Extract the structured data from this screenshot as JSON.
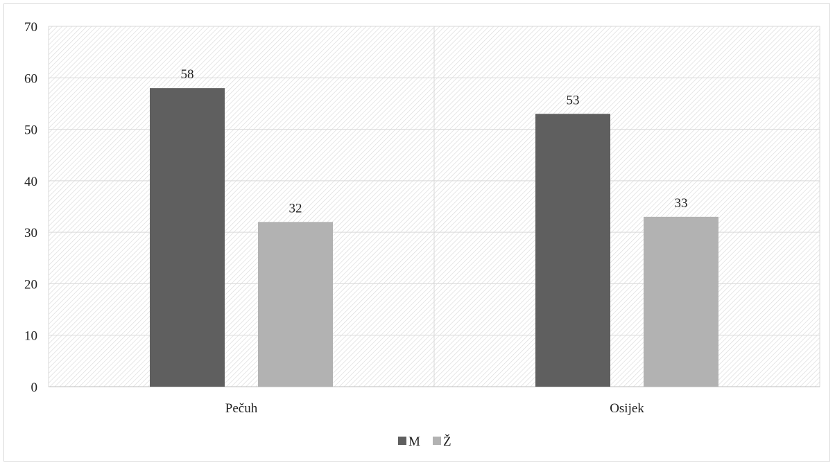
{
  "chart_data": {
    "type": "bar",
    "categories": [
      "Pečuh",
      "Osijek"
    ],
    "series": [
      {
        "name": "M",
        "values": [
          58,
          53
        ],
        "color": "#5f5f5f"
      },
      {
        "name": "Ž",
        "values": [
          32,
          33
        ],
        "color": "#b2b2b2"
      }
    ],
    "ylim": [
      0,
      70
    ],
    "yticks": [
      0,
      10,
      20,
      30,
      40,
      50,
      60,
      70
    ],
    "grid": true,
    "legend": "bottom-center",
    "data_labels": true,
    "plot_background": "hatched-light-gray",
    "title": "",
    "xlabel": "",
    "ylabel": ""
  }
}
